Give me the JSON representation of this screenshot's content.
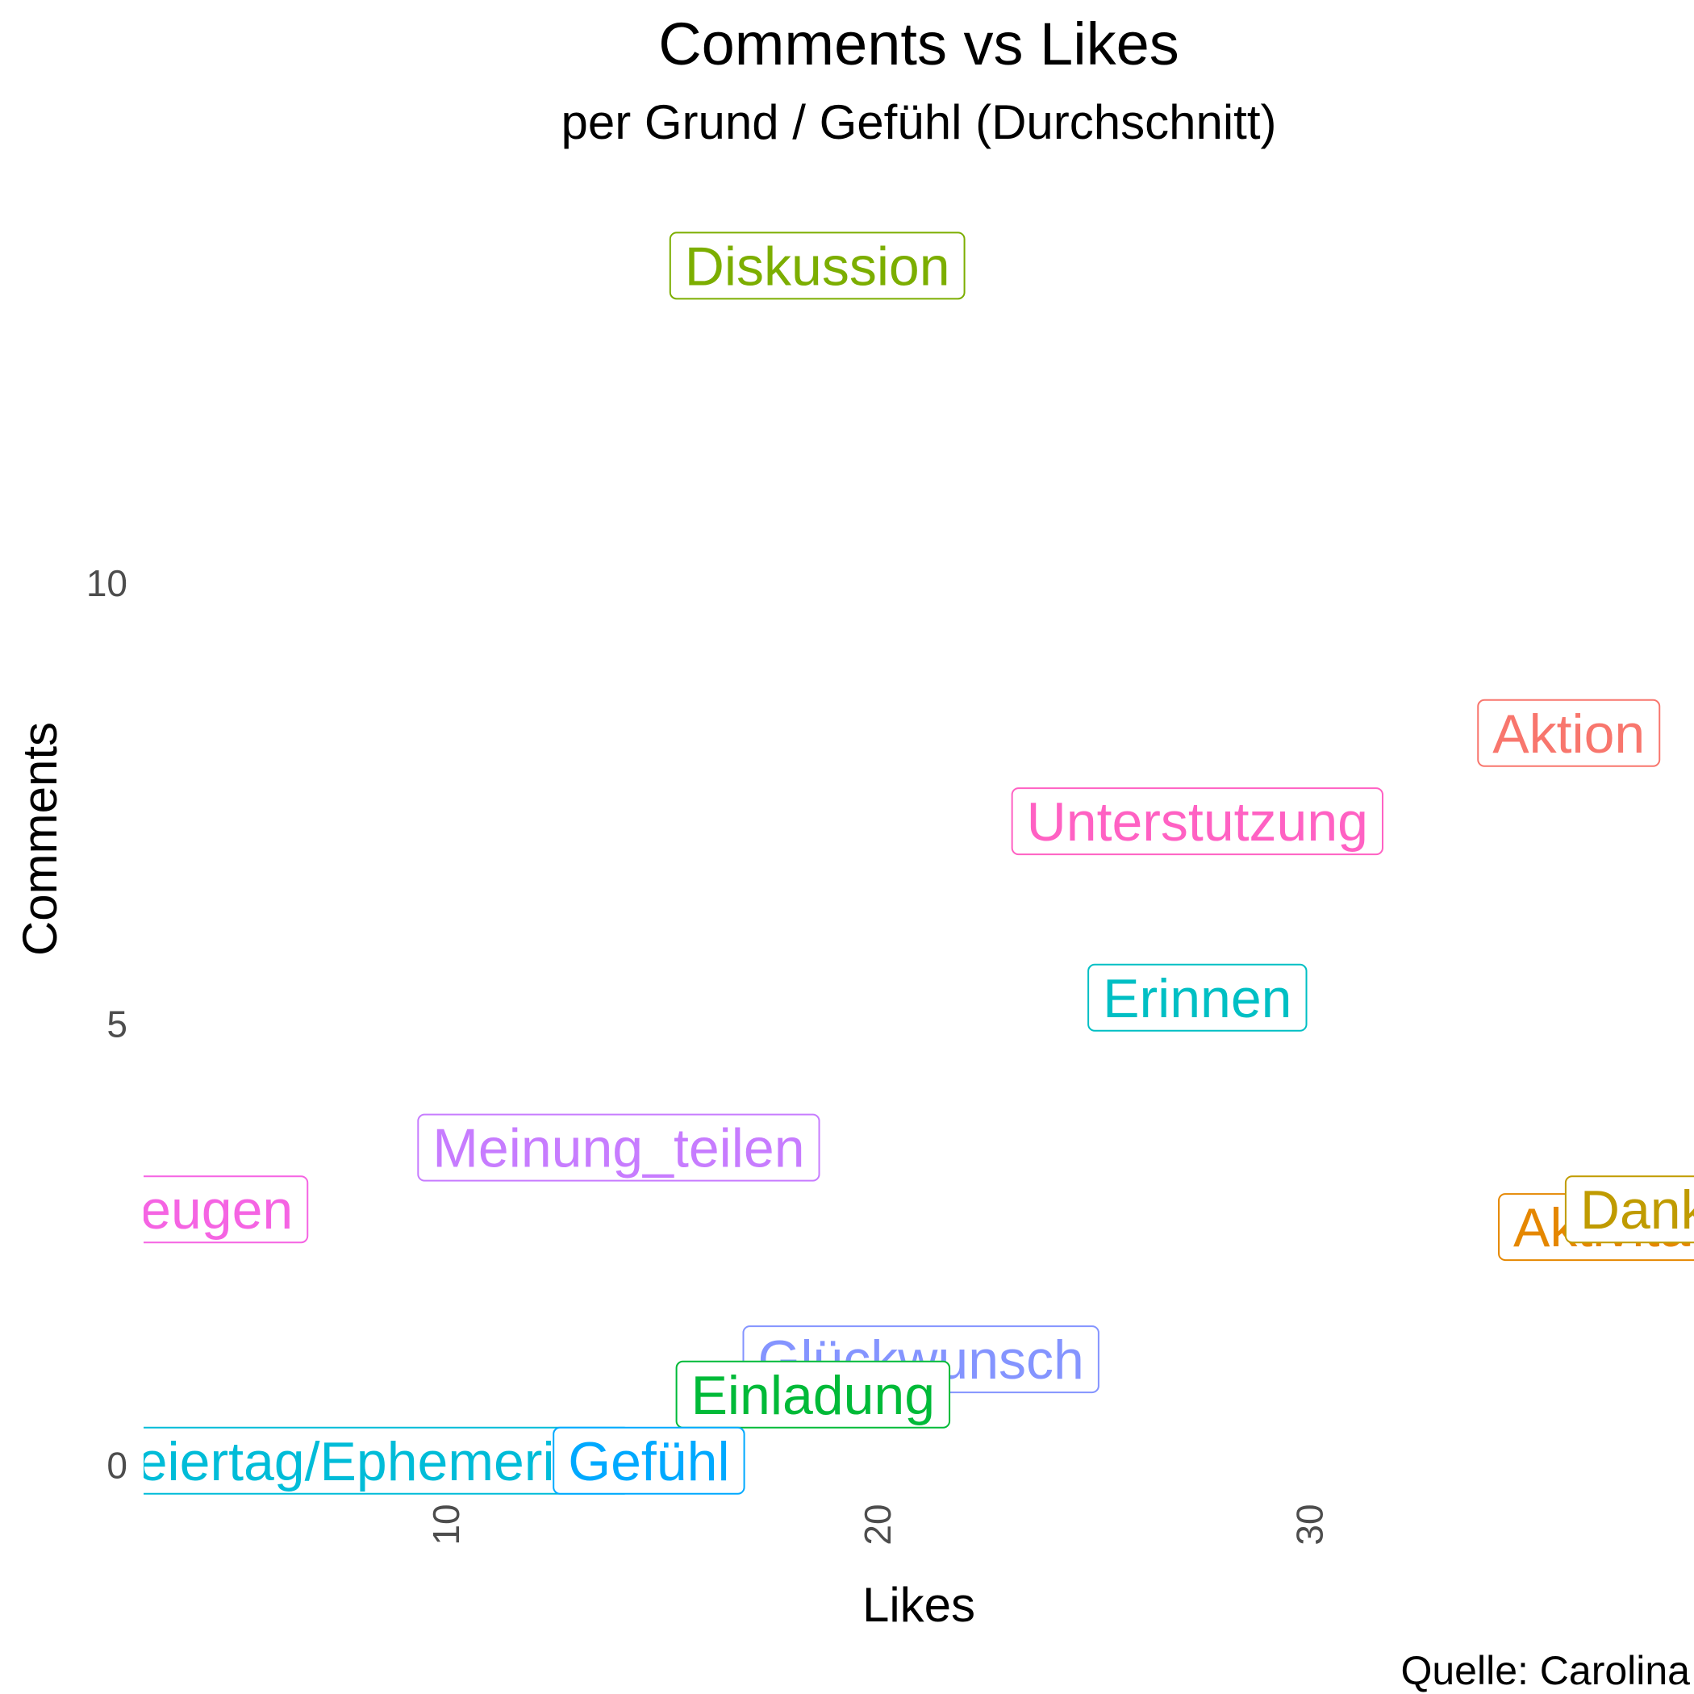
{
  "chart_data": {
    "type": "scatter",
    "title": "Comments vs Likes",
    "subtitle": "per Grund / Gefühl (Durchschnitt)",
    "xlabel": "Likes",
    "ylabel": "Comments",
    "caption": "Quelle: Carolina",
    "grid": false,
    "xlim": [
      3,
      38.9
    ],
    "ylim": [
      -0.4,
      14.6
    ],
    "x_ticks": [
      10,
      20,
      30
    ],
    "y_ticks": [
      0,
      5,
      10
    ],
    "label_style": "boxed-text",
    "points": [
      {
        "label": "Diskussion",
        "x": 18.6,
        "y": 13.6,
        "color": "#7CAE00"
      },
      {
        "label": "Aktion",
        "x": 36.0,
        "y": 8.3,
        "color": "#F8766D"
      },
      {
        "label": "Unterstutzung",
        "x": 27.4,
        "y": 7.3,
        "color": "#FF61C3"
      },
      {
        "label": "Erinnen",
        "x": 27.4,
        "y": 5.3,
        "color": "#00BFC4"
      },
      {
        "label": "Meinung_teilen",
        "x": 14.0,
        "y": 3.6,
        "color": "#C77CFF"
      },
      {
        "label": "Überzeugen",
        "x": 3.0,
        "y": 2.9,
        "color": "#F564E3"
      },
      {
        "label": "Aktivitäten_",
        "x": 38.0,
        "y": 2.7,
        "color": "#E58700"
      },
      {
        "label": "Danke",
        "x": 38.1,
        "y": 2.9,
        "color": "#C09B00"
      },
      {
        "label": "Glückwunsch",
        "x": 21.0,
        "y": 1.2,
        "color": "#8494FF"
      },
      {
        "label": "Einladung",
        "x": 18.5,
        "y": 0.8,
        "color": "#00BA38"
      },
      {
        "label": "Feiertag/Ephemeride",
        "x": 8.0,
        "y": 0.05,
        "color": "#00BCD8"
      },
      {
        "label": "Gefühl",
        "x": 14.7,
        "y": 0.05,
        "color": "#00A9FF"
      }
    ]
  }
}
